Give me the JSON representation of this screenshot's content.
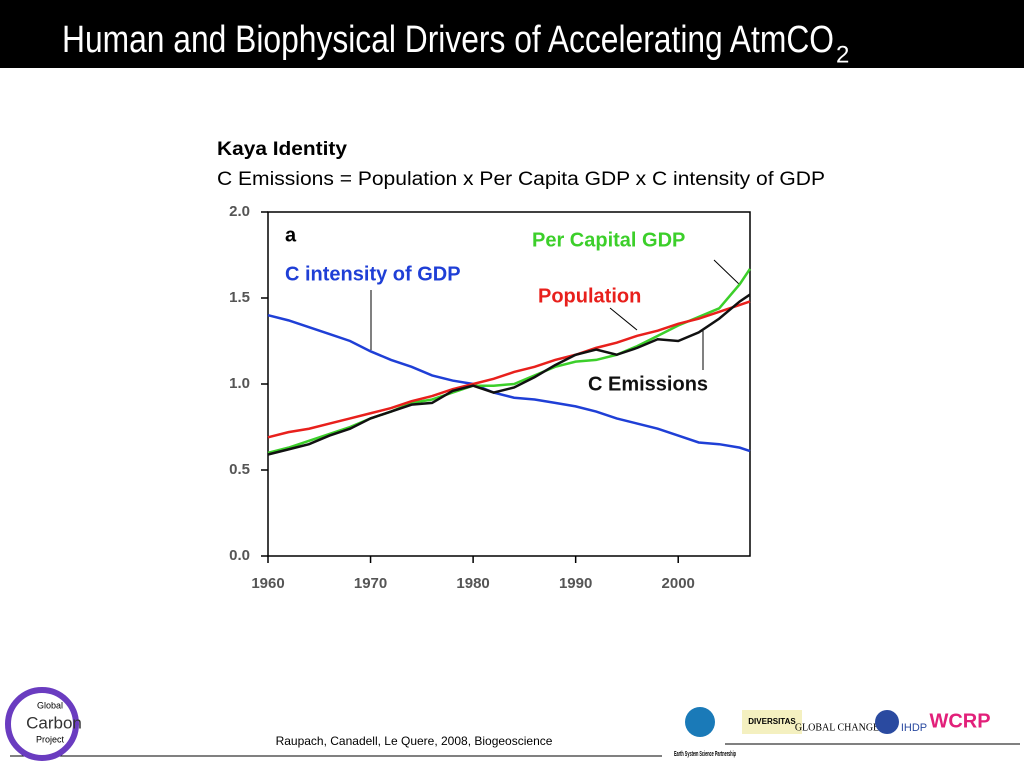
{
  "header": {
    "title": "Human and Biophysical Drivers of Accelerating AtmCO",
    "title_subscript": "2"
  },
  "heading": "Kaya Identity",
  "subheading": "C Emissions = Population x Per Capita GDP x C intensity of GDP",
  "citation": "Raupach, Canadell, Le Quere, 2008, Biogeoscience",
  "logos": {
    "gcp": [
      "Global",
      "Carbon",
      "Project"
    ],
    "essp": "Earth System Science Partnership",
    "diversitas": "DIVERSITAS",
    "igbp": "GLOBAL CHANGE",
    "ihdp": "IHDP",
    "wcrp": "WCRP"
  },
  "chart_data": {
    "type": "line",
    "panel_label": "a",
    "x": [
      1960,
      1962,
      1964,
      1966,
      1968,
      1970,
      1972,
      1974,
      1976,
      1978,
      1980,
      1982,
      1984,
      1986,
      1988,
      1990,
      1992,
      1994,
      1996,
      1998,
      2000,
      2002,
      2004,
      2006,
      2007
    ],
    "xlim": [
      1960,
      2007
    ],
    "xticks": [
      1960,
      1970,
      1980,
      1990,
      2000
    ],
    "ylim": [
      0,
      2
    ],
    "yticks": [
      {
        "value": 0,
        "label": "0.0"
      },
      {
        "value": 0.5,
        "label": "0.5"
      },
      {
        "value": 1,
        "label": "1.0"
      },
      {
        "value": 1.5,
        "label": "1.5"
      },
      {
        "value": 2,
        "label": "2.0"
      }
    ],
    "series": [
      {
        "name": "C intensity of GDP",
        "color": "#1f3fd6",
        "values": [
          1.4,
          1.37,
          1.33,
          1.29,
          1.25,
          1.19,
          1.14,
          1.1,
          1.05,
          1.02,
          1.0,
          0.95,
          0.92,
          0.91,
          0.89,
          0.87,
          0.84,
          0.8,
          0.77,
          0.74,
          0.7,
          0.66,
          0.65,
          0.63,
          0.61
        ]
      },
      {
        "name": "Per Capital GDP",
        "color": "#3ccf2a",
        "values": [
          0.6,
          0.63,
          0.67,
          0.71,
          0.75,
          0.8,
          0.84,
          0.89,
          0.91,
          0.95,
          0.99,
          0.99,
          1.0,
          1.05,
          1.1,
          1.13,
          1.14,
          1.17,
          1.22,
          1.28,
          1.34,
          1.39,
          1.44,
          1.58,
          1.67
        ]
      },
      {
        "name": "Population",
        "color": "#e8201c",
        "values": [
          0.69,
          0.72,
          0.74,
          0.77,
          0.8,
          0.83,
          0.86,
          0.9,
          0.93,
          0.97,
          1.0,
          1.03,
          1.07,
          1.1,
          1.14,
          1.17,
          1.21,
          1.24,
          1.28,
          1.31,
          1.35,
          1.38,
          1.42,
          1.46,
          1.48
        ]
      },
      {
        "name": "C Emissions",
        "color": "#111111",
        "values": [
          0.59,
          0.62,
          0.65,
          0.7,
          0.74,
          0.8,
          0.84,
          0.88,
          0.89,
          0.96,
          0.99,
          0.95,
          0.98,
          1.04,
          1.11,
          1.17,
          1.2,
          1.17,
          1.21,
          1.26,
          1.25,
          1.3,
          1.38,
          1.48,
          1.52
        ]
      }
    ]
  }
}
